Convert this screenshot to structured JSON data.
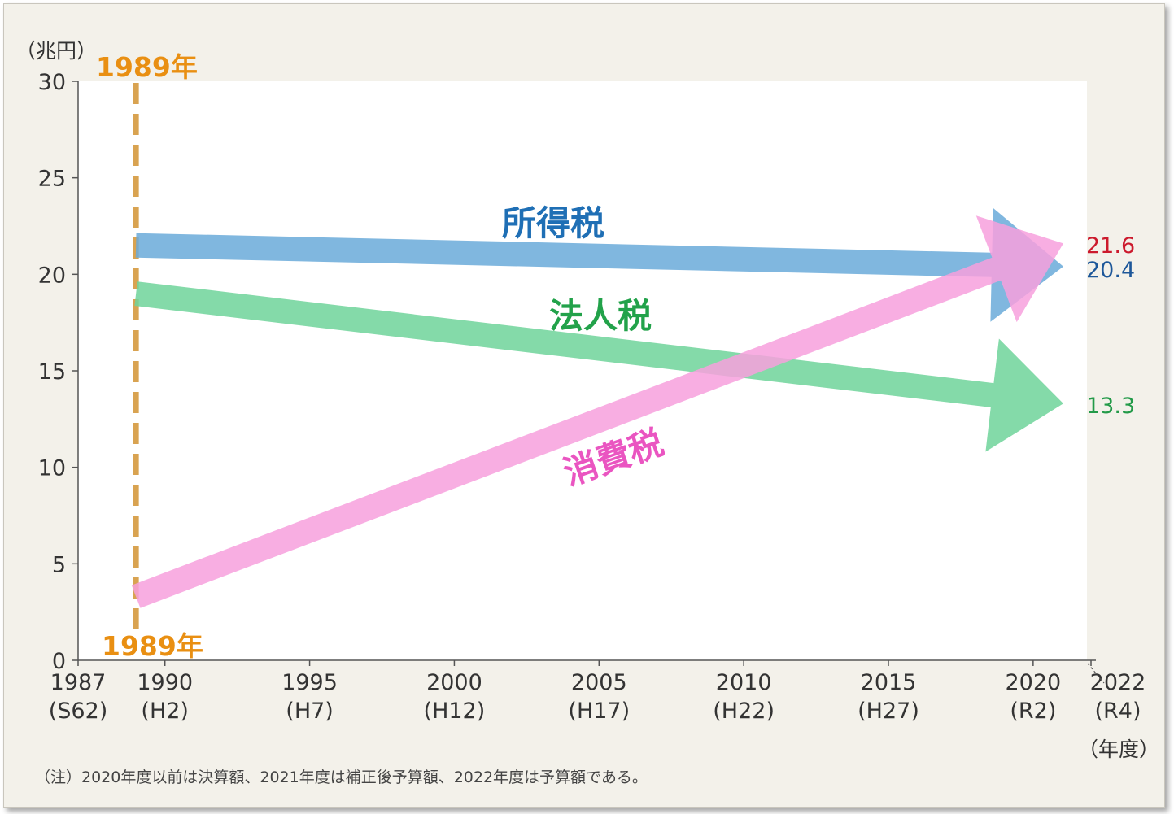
{
  "chart_data": {
    "type": "line",
    "ylabel": "（兆円）",
    "xlabel": "（年度）",
    "ylim": [
      0,
      30
    ],
    "yticks": [
      0,
      5,
      10,
      15,
      20,
      25,
      30
    ],
    "xticks": [
      {
        "year": 1987,
        "era": "(S62)"
      },
      {
        "year": 1990,
        "era": "(H2)"
      },
      {
        "year": 1995,
        "era": "(H7)"
      },
      {
        "year": 2000,
        "era": "(H12)"
      },
      {
        "year": 2005,
        "era": "(H17)"
      },
      {
        "year": 2010,
        "era": "(H22)"
      },
      {
        "year": 2015,
        "era": "(H27)"
      },
      {
        "year": 2020,
        "era": "(R2)"
      },
      {
        "year": 2022,
        "era": "(R4)"
      }
    ],
    "series": [
      {
        "name": "所得税",
        "x": [
          1989,
          2022
        ],
        "values": [
          21.5,
          20.4
        ],
        "end_label": "20.4",
        "color": "#6aaad9",
        "label_color": "#1f6fb5",
        "end_label_color": "#1d5799"
      },
      {
        "name": "法人税",
        "x": [
          1989,
          2022
        ],
        "values": [
          19.0,
          13.3
        ],
        "end_label": "13.3",
        "color": "#6fd49a",
        "label_color": "#22a24a",
        "end_label_color": "#229a48"
      },
      {
        "name": "消費税",
        "x": [
          1989,
          2022
        ],
        "values": [
          3.3,
          21.6
        ],
        "end_label": "21.6",
        "color": "#f7a0dd",
        "label_color": "#ea55c1",
        "end_label_color": "#cc1a2d"
      }
    ],
    "marker": {
      "x": 1989,
      "label": "1989年",
      "color": "#d9a351"
    },
    "note": "（注）2020年度以前は決算額、2021年度は補正後予算額、2022年度は予算額である。"
  }
}
